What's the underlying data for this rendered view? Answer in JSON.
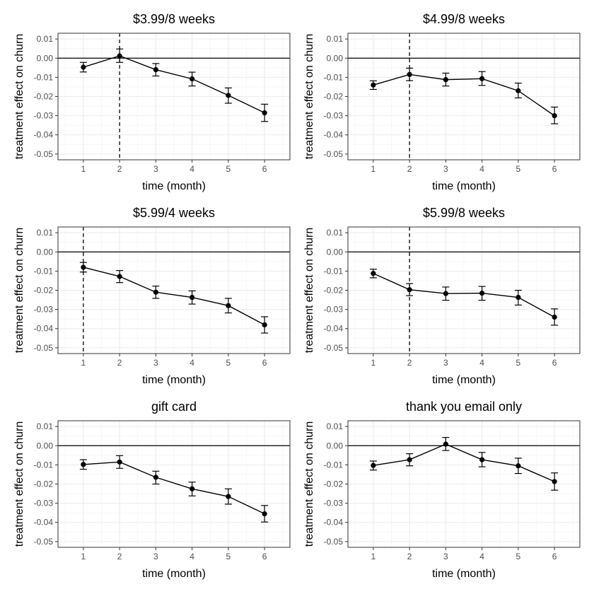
{
  "chart_data": [
    {
      "type": "line",
      "title": "$3.99/8 weeks",
      "xlabel": "time (month)",
      "ylabel": "treatment effect on churn",
      "x": [
        1,
        2,
        3,
        4,
        5,
        6
      ],
      "y": [
        -0.0047,
        0.0012,
        -0.006,
        -0.0108,
        -0.0194,
        -0.0285
      ],
      "err_low": [
        -0.0072,
        -0.0022,
        -0.0093,
        -0.0145,
        -0.0235,
        -0.033
      ],
      "err_high": [
        -0.0022,
        0.0048,
        -0.0028,
        -0.0073,
        -0.0155,
        -0.024
      ],
      "vline": 2,
      "hline": 0,
      "xlim": [
        0.3,
        6.7
      ],
      "ylim": [
        -0.053,
        0.013
      ],
      "xticks": [
        "1",
        "2",
        "3",
        "4",
        "5",
        "6"
      ],
      "yticks": [
        "0.01",
        "0.00",
        "-0.01",
        "-0.02",
        "-0.03",
        "-0.04",
        "-0.05"
      ],
      "grid": true
    },
    {
      "type": "line",
      "title": "$4.99/8 weeks",
      "xlabel": "time (month)",
      "ylabel": "treatment effect on churn",
      "x": [
        1,
        2,
        3,
        4,
        5,
        6
      ],
      "y": [
        -0.014,
        -0.0085,
        -0.0112,
        -0.0107,
        -0.017,
        -0.03
      ],
      "err_low": [
        -0.0163,
        -0.0117,
        -0.0145,
        -0.0142,
        -0.0207,
        -0.0342
      ],
      "err_high": [
        -0.0118,
        -0.0052,
        -0.0078,
        -0.007,
        -0.013,
        -0.0255
      ],
      "vline": 2,
      "hline": 0,
      "xlim": [
        0.3,
        6.7
      ],
      "ylim": [
        -0.053,
        0.013
      ],
      "xticks": [
        "1",
        "2",
        "3",
        "4",
        "5",
        "6"
      ],
      "yticks": [
        "0.01",
        "0.00",
        "-0.01",
        "-0.02",
        "-0.03",
        "-0.04",
        "-0.05"
      ],
      "grid": true
    },
    {
      "type": "line",
      "title": "$5.99/4 weeks",
      "xlabel": "time (month)",
      "ylabel": "treatment effect on churn",
      "x": [
        1,
        2,
        3,
        4,
        5,
        6
      ],
      "y": [
        -0.008,
        -0.0128,
        -0.021,
        -0.0237,
        -0.028,
        -0.038
      ],
      "err_low": [
        -0.0105,
        -0.016,
        -0.0242,
        -0.0272,
        -0.0318,
        -0.0423
      ],
      "err_high": [
        -0.0055,
        -0.0097,
        -0.0178,
        -0.0203,
        -0.0242,
        -0.0338
      ],
      "vline": 1,
      "hline": 0,
      "xlim": [
        0.3,
        6.7
      ],
      "ylim": [
        -0.053,
        0.013
      ],
      "xticks": [
        "1",
        "2",
        "3",
        "4",
        "5",
        "6"
      ],
      "yticks": [
        "0.01",
        "0.00",
        "-0.01",
        "-0.02",
        "-0.03",
        "-0.04",
        "-0.05"
      ],
      "grid": true
    },
    {
      "type": "line",
      "title": "$5.99/8 weeks",
      "xlabel": "time (month)",
      "ylabel": "treatment effect on churn",
      "x": [
        1,
        2,
        3,
        4,
        5,
        6
      ],
      "y": [
        -0.0112,
        -0.0197,
        -0.0217,
        -0.0215,
        -0.0237,
        -0.034
      ],
      "err_low": [
        -0.0135,
        -0.0228,
        -0.0252,
        -0.0252,
        -0.0277,
        -0.0382
      ],
      "err_high": [
        -0.009,
        -0.0165,
        -0.0183,
        -0.018,
        -0.02,
        -0.0297
      ],
      "vline": 2,
      "hline": 0,
      "xlim": [
        0.3,
        6.7
      ],
      "ylim": [
        -0.053,
        0.013
      ],
      "xticks": [
        "1",
        "2",
        "3",
        "4",
        "5",
        "6"
      ],
      "yticks": [
        "0.01",
        "0.00",
        "-0.01",
        "-0.02",
        "-0.03",
        "-0.04",
        "-0.05"
      ],
      "grid": true
    },
    {
      "type": "line",
      "title": "gift card",
      "xlabel": "time (month)",
      "ylabel": "treatment effect on churn",
      "x": [
        1,
        2,
        3,
        4,
        5,
        6
      ],
      "y": [
        -0.0098,
        -0.0085,
        -0.0165,
        -0.0225,
        -0.0265,
        -0.0355
      ],
      "err_low": [
        -0.0123,
        -0.0118,
        -0.02,
        -0.0262,
        -0.0305,
        -0.0398
      ],
      "err_high": [
        -0.0073,
        -0.0052,
        -0.0133,
        -0.019,
        -0.0225,
        -0.0312
      ],
      "vline": null,
      "hline": 0,
      "xlim": [
        0.3,
        6.7
      ],
      "ylim": [
        -0.053,
        0.013
      ],
      "xticks": [
        "1",
        "2",
        "3",
        "4",
        "5",
        "6"
      ],
      "yticks": [
        "0.01",
        "0.00",
        "-0.01",
        "-0.02",
        "-0.03",
        "-0.04",
        "-0.05"
      ],
      "grid": true
    },
    {
      "type": "line",
      "title": "thank you email only",
      "xlabel": "time (month)",
      "ylabel": "treatment effect on churn",
      "x": [
        1,
        2,
        3,
        4,
        5,
        6
      ],
      "y": [
        -0.0103,
        -0.0073,
        0.0008,
        -0.0073,
        -0.0105,
        -0.0187
      ],
      "err_low": [
        -0.0127,
        -0.0105,
        -0.0025,
        -0.011,
        -0.0145,
        -0.0232
      ],
      "err_high": [
        -0.008,
        -0.0042,
        0.0043,
        -0.0035,
        -0.0065,
        -0.0142
      ],
      "vline": null,
      "hline": 0,
      "xlim": [
        0.3,
        6.7
      ],
      "ylim": [
        -0.053,
        0.013
      ],
      "xticks": [
        "1",
        "2",
        "3",
        "4",
        "5",
        "6"
      ],
      "yticks": [
        "0.01",
        "0.00",
        "-0.01",
        "-0.02",
        "-0.03",
        "-0.04",
        "-0.05"
      ],
      "grid": true
    }
  ]
}
